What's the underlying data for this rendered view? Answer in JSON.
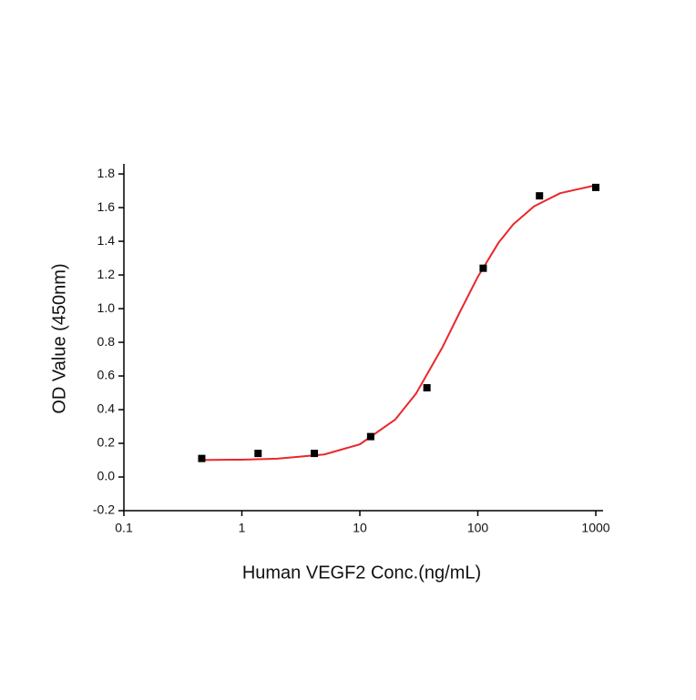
{
  "chart_data": {
    "type": "scatter",
    "x_label": "Human VEGF2 Conc.(ng/mL)",
    "y_label": "OD Value (450nm)",
    "xlog": true,
    "xlim": [
      0.1,
      1000
    ],
    "xticks": [
      0.1,
      1,
      10,
      100,
      1000
    ],
    "ylim": [
      -0.2,
      1.86
    ],
    "yticks": [
      -0.2,
      {
        "value": 0,
        "label": "0.0"
      },
      0.2,
      0.4,
      0.6,
      0.8,
      {
        "value": 1,
        "label": "1.0"
      },
      1.2,
      1.4,
      1.6,
      1.8
    ],
    "series": [
      {
        "type": "scatter",
        "color": "#000000",
        "x": [
          0.457,
          1.372,
          4.115,
          12.35,
          37.04,
          111.1,
          333.3,
          1000
        ],
        "values": [
          0.11,
          0.14,
          0.14,
          0.24,
          0.53,
          1.24,
          1.67,
          1.72
        ]
      },
      {
        "type": "line",
        "color": "#e8282b",
        "x": [
          0.46,
          1,
          2,
          5,
          10,
          20,
          30,
          50,
          70,
          100,
          150,
          200,
          300,
          500,
          1000
        ],
        "values": [
          0.101,
          0.103,
          0.109,
          0.134,
          0.194,
          0.342,
          0.496,
          0.769,
          0.976,
          1.189,
          1.392,
          1.501,
          1.608,
          1.686,
          1.733
        ]
      }
    ]
  }
}
